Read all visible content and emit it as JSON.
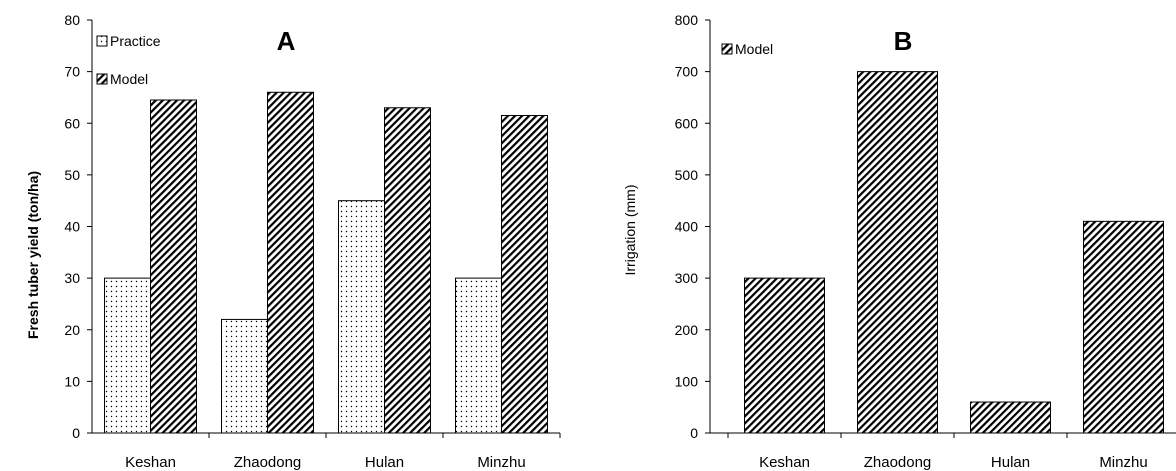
{
  "chart_data": [
    {
      "type": "bar",
      "title": "A",
      "ylabel": "Fresh tuber yield (ton/ha)",
      "xlabel": "",
      "ylim": [
        0,
        80
      ],
      "yticks": [
        0,
        10,
        20,
        30,
        40,
        50,
        60,
        70,
        80
      ],
      "categories": [
        "Keshan",
        "Zhaodong",
        "Hulan",
        "Minzhu"
      ],
      "legend": "top-left",
      "grid": false,
      "series": [
        {
          "name": "Practice",
          "values": [
            30,
            22,
            45,
            30
          ],
          "pattern": "dots"
        },
        {
          "name": "Model",
          "values": [
            64.5,
            66,
            63,
            61.5
          ],
          "pattern": "diagonal-hatch"
        }
      ]
    },
    {
      "type": "bar",
      "title": "B",
      "ylabel": "Irrigation (mm)",
      "xlabel": "",
      "ylim": [
        0,
        800
      ],
      "yticks": [
        0,
        100,
        200,
        300,
        400,
        500,
        600,
        700,
        800
      ],
      "categories": [
        "Keshan",
        "Zhaodong",
        "Hulan",
        "Minzhu"
      ],
      "legend": "top-left",
      "grid": false,
      "series": [
        {
          "name": "Model",
          "values": [
            300,
            700,
            60,
            410
          ],
          "pattern": "diagonal-hatch"
        }
      ]
    }
  ],
  "colors": {
    "stroke": "#000000",
    "background": "#ffffff"
  }
}
